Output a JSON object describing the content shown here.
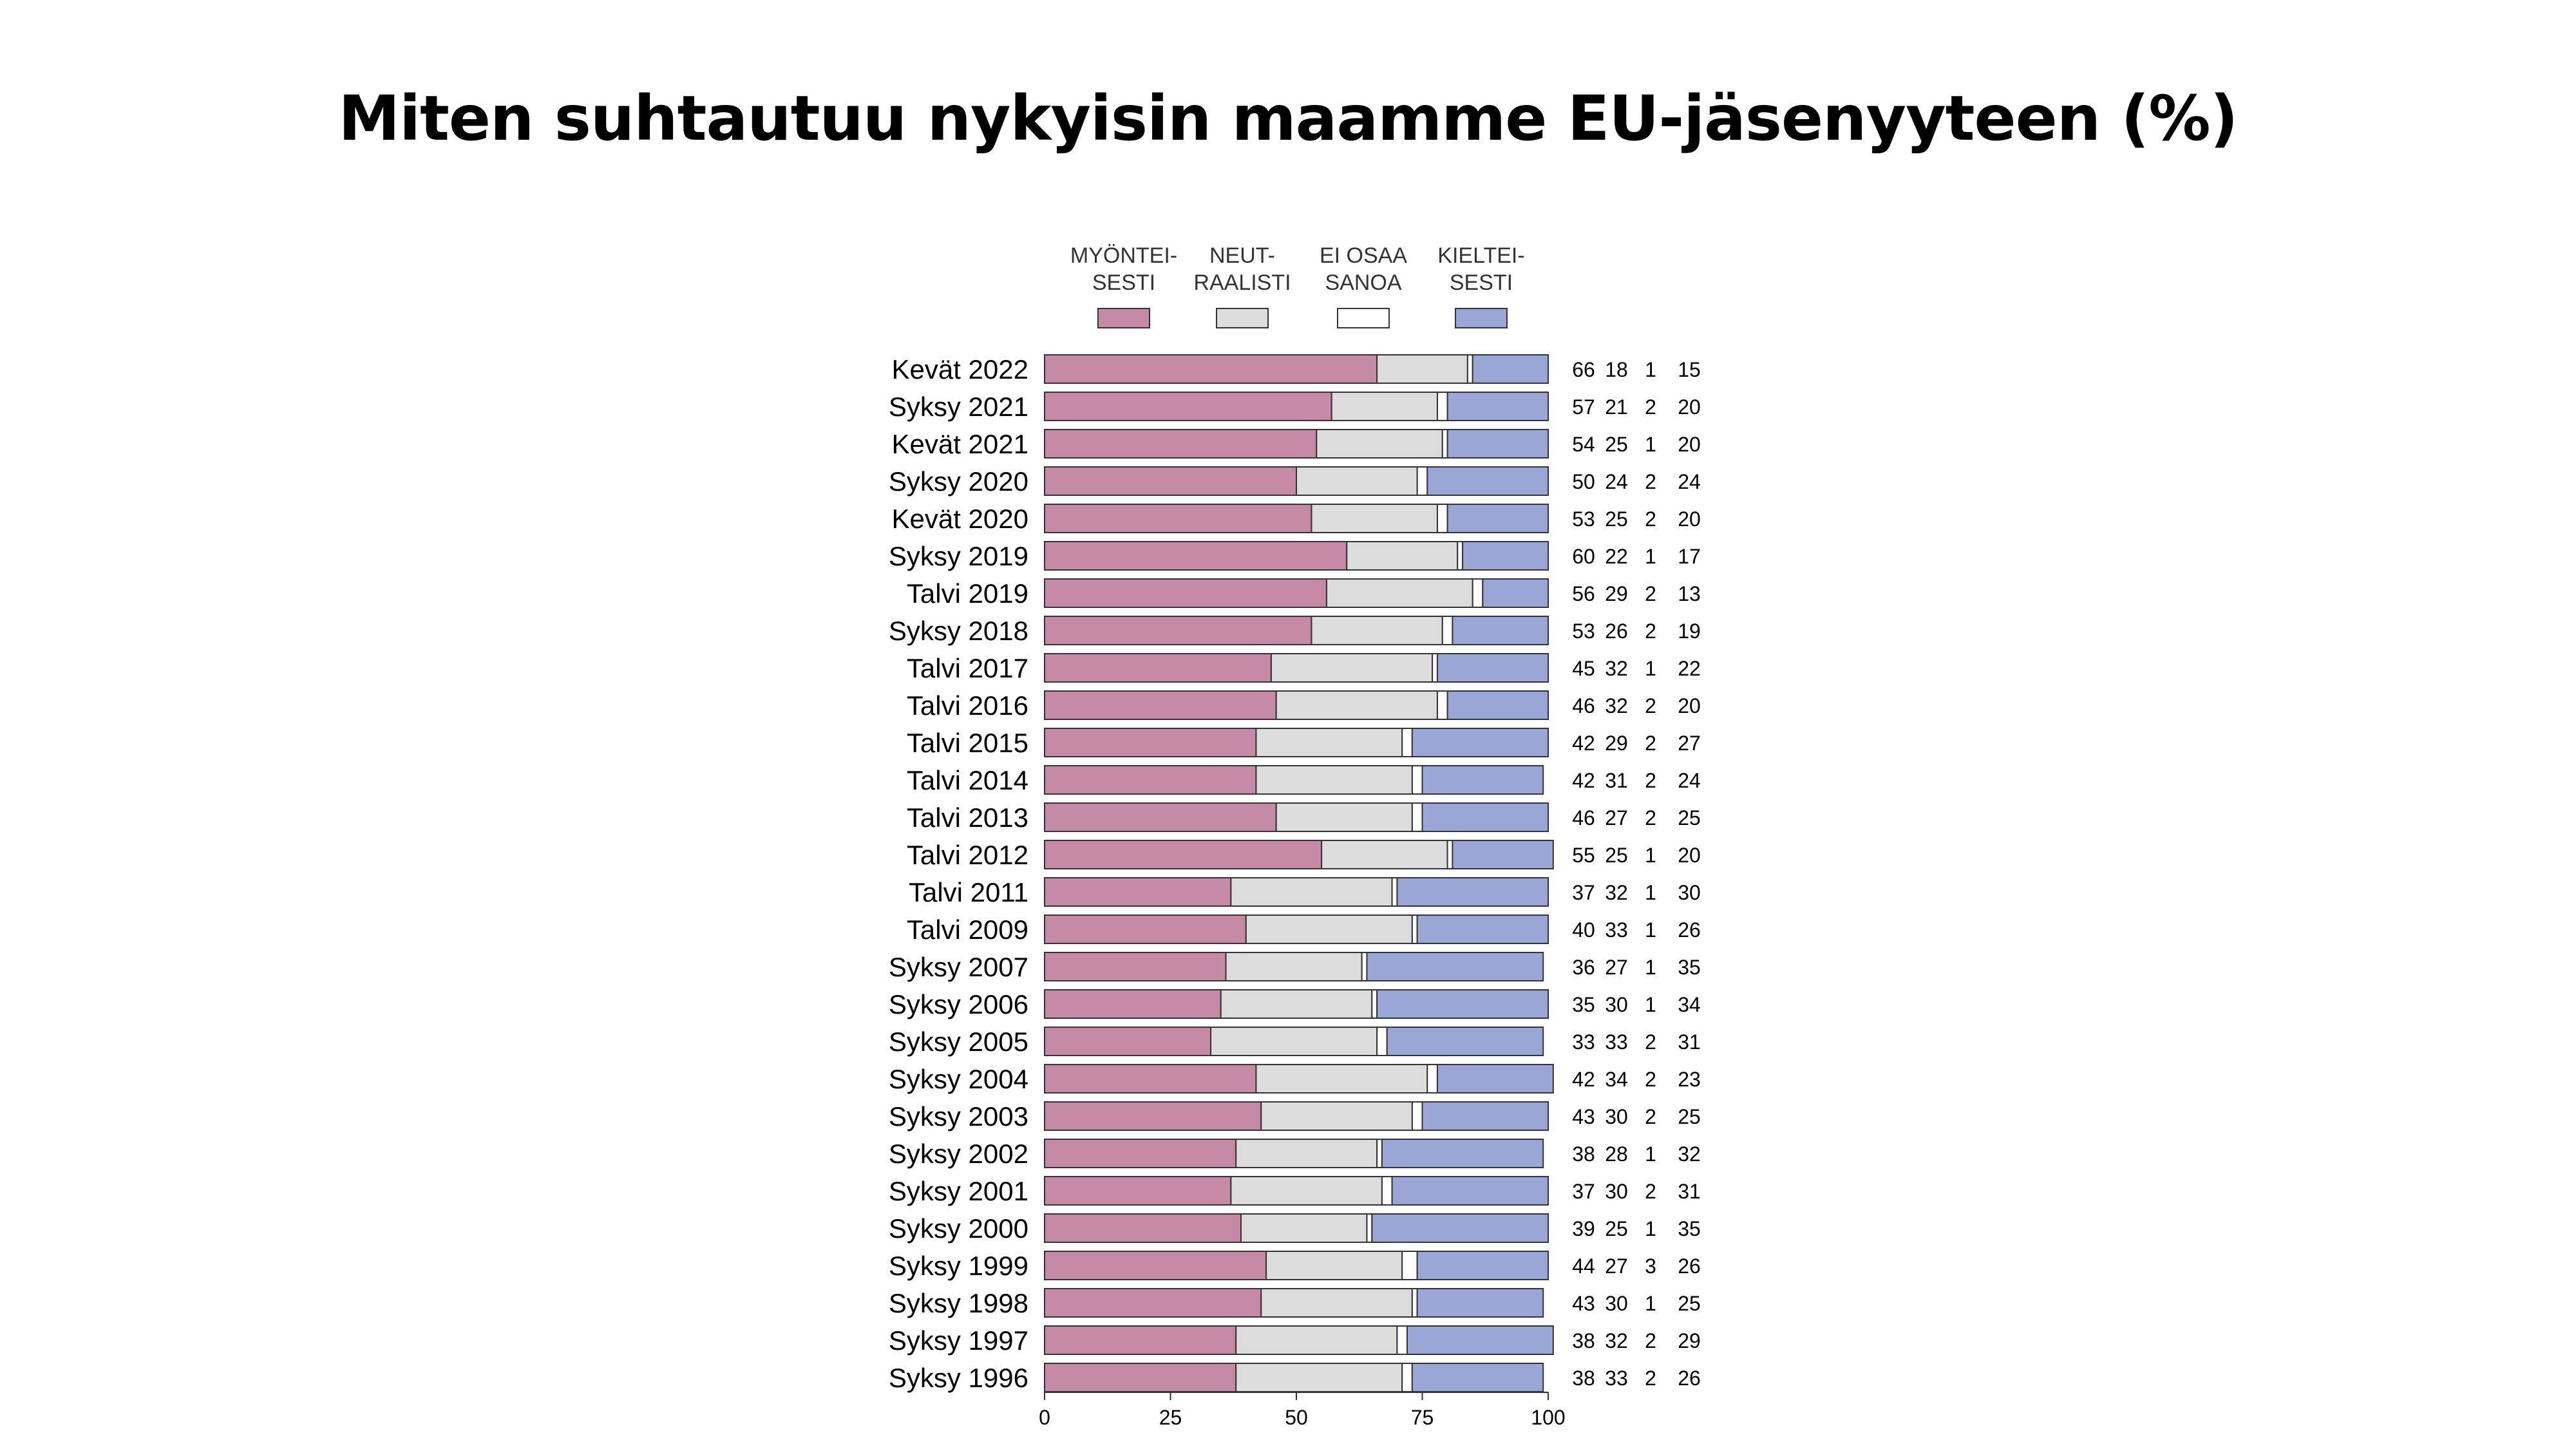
{
  "title": "Miten suhtautuu nykyisin maamme EU-jäsenyyteen (%)",
  "chart_data": {
    "type": "bar",
    "orientation": "horizontal",
    "stacked": true,
    "title": "Miten suhtautuu nykyisin maamme EU-jäsenyyteen (%)",
    "xlim": [
      0,
      100
    ],
    "xticks": [
      "0",
      "25",
      "50",
      "75",
      "100"
    ],
    "legend_position": "top",
    "categories": [
      "Kevät 2022",
      "Syksy 2021",
      "Kevät 2021",
      "Syksy 2020",
      "Kevät 2020",
      "Syksy 2019",
      "Talvi 2019",
      "Syksy 2018",
      "Talvi 2017",
      "Talvi 2016",
      "Talvi 2015",
      "Talvi 2014",
      "Talvi 2013",
      "Talvi 2012",
      "Talvi 2011",
      "Talvi 2009",
      "Syksy 2007",
      "Syksy 2006",
      "Syksy 2005",
      "Syksy 2004",
      "Syksy 2003",
      "Syksy 2002",
      "Syksy 2001",
      "Syksy 2000",
      "Syksy 1999",
      "Syksy 1998",
      "Syksy 1997",
      "Syksy 1996"
    ],
    "series": [
      {
        "name": "MYÖNTEI-\nSESTI",
        "color": "#c58aa5",
        "values": [
          66,
          57,
          54,
          50,
          53,
          60,
          56,
          53,
          45,
          46,
          42,
          42,
          46,
          55,
          37,
          40,
          36,
          35,
          33,
          42,
          43,
          38,
          37,
          39,
          44,
          43,
          38,
          38
        ]
      },
      {
        "name": "NEUT-\nRAALISTI",
        "color": "#dcdcdc",
        "values": [
          18,
          21,
          25,
          24,
          25,
          22,
          29,
          26,
          32,
          32,
          29,
          31,
          27,
          25,
          32,
          33,
          27,
          30,
          33,
          34,
          30,
          28,
          30,
          25,
          27,
          30,
          32,
          33
        ]
      },
      {
        "name": "EI OSAA\nSANOA",
        "color": "#ffffff",
        "values": [
          1,
          2,
          1,
          2,
          2,
          1,
          2,
          2,
          1,
          2,
          2,
          2,
          2,
          1,
          1,
          1,
          1,
          1,
          2,
          2,
          2,
          1,
          2,
          1,
          3,
          1,
          2,
          2
        ]
      },
      {
        "name": "KIELTEI-\nSESTI",
        "color": "#9aa6d6",
        "values": [
          15,
          20,
          20,
          24,
          20,
          17,
          13,
          19,
          22,
          20,
          27,
          24,
          25,
          20,
          30,
          26,
          35,
          34,
          31,
          23,
          25,
          32,
          31,
          35,
          26,
          25,
          29,
          26
        ]
      }
    ]
  }
}
